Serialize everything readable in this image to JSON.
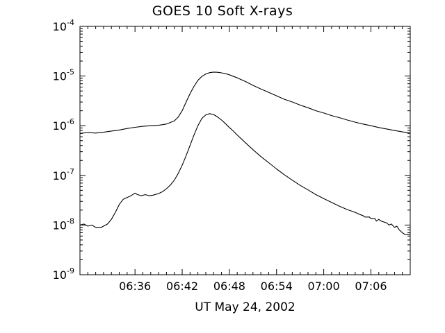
{
  "chart_data": {
    "type": "line",
    "title": "GOES 10 Soft X-rays",
    "xlabel": "UT May 24, 2002",
    "ylabel": "",
    "background": "#ffffff",
    "line_color": "#000000",
    "grid": false,
    "legend": "none",
    "y_scale": "log",
    "y_range_exponents": [
      -9,
      -4
    ],
    "y_major_ticks": [
      {
        "exponent": -4,
        "base": "10",
        "exp": "-4"
      },
      {
        "exponent": -5,
        "base": "10",
        "exp": "-5"
      },
      {
        "exponent": -6,
        "base": "10",
        "exp": "-6"
      },
      {
        "exponent": -7,
        "base": "10",
        "exp": "-7"
      },
      {
        "exponent": -8,
        "base": "10",
        "exp": "-8"
      },
      {
        "exponent": -9,
        "base": "10",
        "exp": "-9"
      }
    ],
    "x_unit": "minutes after 06:00 UT",
    "x_range": [
      29,
      71
    ],
    "x_minor_tick_step": 1,
    "x_major_ticks": [
      {
        "minute": 36,
        "label": "06:36"
      },
      {
        "minute": 42,
        "label": "06:42"
      },
      {
        "minute": 48,
        "label": "06:48"
      },
      {
        "minute": 54,
        "label": "06:54"
      },
      {
        "minute": 60,
        "label": "07:00"
      },
      {
        "minute": 66,
        "label": "07:06"
      }
    ],
    "series": [
      {
        "name": "upper-curve-long-channel",
        "x": [
          29,
          30,
          31,
          32,
          33,
          34,
          35,
          36,
          37,
          38,
          39,
          40,
          41,
          41.5,
          42,
          42.5,
          43,
          43.5,
          44,
          44.5,
          45,
          45.5,
          46,
          46.5,
          47,
          47.5,
          48,
          49,
          50,
          51,
          52,
          53,
          54,
          55,
          56,
          57,
          58,
          59,
          60,
          61,
          62,
          63,
          64,
          65,
          66,
          67,
          68,
          69,
          70,
          71
        ],
        "y": [
          7e-07,
          7.3e-07,
          7.1e-07,
          7.4e-07,
          7.8e-07,
          8.2e-07,
          8.8e-07,
          9.3e-07,
          9.7e-07,
          1e-06,
          1.02e-06,
          1.08e-06,
          1.25e-06,
          1.5e-06,
          2e-06,
          3e-06,
          4.4e-06,
          6.2e-06,
          8.2e-06,
          9.8e-06,
          1.1e-05,
          1.17e-05,
          1.2e-05,
          1.19e-05,
          1.16e-05,
          1.12e-05,
          1.06e-05,
          9.2e-06,
          7.8e-06,
          6.5e-06,
          5.5e-06,
          4.7e-06,
          4e-06,
          3.4e-06,
          3e-06,
          2.6e-06,
          2.3e-06,
          2e-06,
          1.8e-06,
          1.6e-06,
          1.45e-06,
          1.3e-06,
          1.18e-06,
          1.08e-06,
          1e-06,
          9.2e-07,
          8.6e-07,
          8e-07,
          7.5e-07,
          7.1e-07
        ]
      },
      {
        "name": "lower-curve-short-channel",
        "x": [
          29,
          29.5,
          30,
          30.5,
          31,
          31.7,
          32,
          32.5,
          33,
          33.5,
          34,
          34.5,
          35,
          35.5,
          36,
          36.3,
          36.8,
          37.3,
          37.8,
          38.3,
          39,
          39.5,
          40,
          40.5,
          41,
          41.5,
          42,
          42.5,
          43,
          43.5,
          44,
          44.5,
          45,
          45.5,
          46,
          46.5,
          47,
          47.5,
          48,
          48.5,
          49,
          49.5,
          50,
          51,
          52,
          53,
          54,
          55,
          56,
          57,
          58,
          59,
          60,
          61,
          62,
          63,
          64,
          64.5,
          65,
          65.2,
          65.8,
          66,
          66.5,
          66.7,
          67,
          67.3,
          68,
          68.3,
          68.6,
          69,
          69.3,
          69.6,
          70,
          70.3,
          71
        ],
        "y": [
          1e-08,
          1.05e-08,
          9.5e-09,
          1e-08,
          9e-09,
          9e-09,
          9.5e-09,
          1.05e-08,
          1.3e-08,
          1.8e-08,
          2.6e-08,
          3.3e-08,
          3.6e-08,
          3.9e-08,
          4.4e-08,
          4.1e-08,
          3.9e-08,
          4.1e-08,
          3.9e-08,
          4e-08,
          4.3e-08,
          4.7e-08,
          5.4e-08,
          6.4e-08,
          8e-08,
          1.1e-07,
          1.6e-07,
          2.5e-07,
          4e-07,
          6.5e-07,
          1e-06,
          1.4e-06,
          1.65e-06,
          1.75e-06,
          1.68e-06,
          1.5e-06,
          1.3e-06,
          1.1e-06,
          9.2e-07,
          7.8e-07,
          6.5e-07,
          5.5e-07,
          4.6e-07,
          3.3e-07,
          2.4e-07,
          1.8e-07,
          1.35e-07,
          1.03e-07,
          8e-08,
          6.3e-08,
          5.1e-08,
          4.1e-08,
          3.4e-08,
          2.85e-08,
          2.4e-08,
          2.05e-08,
          1.8e-08,
          1.65e-08,
          1.55e-08,
          1.45e-08,
          1.45e-08,
          1.35e-08,
          1.35e-08,
          1.2e-08,
          1.3e-08,
          1.2e-08,
          1.1e-08,
          1e-08,
          1.05e-08,
          9e-09,
          9.5e-09,
          8e-09,
          7e-09,
          6.5e-09,
          6.5e-09
        ]
      }
    ]
  }
}
